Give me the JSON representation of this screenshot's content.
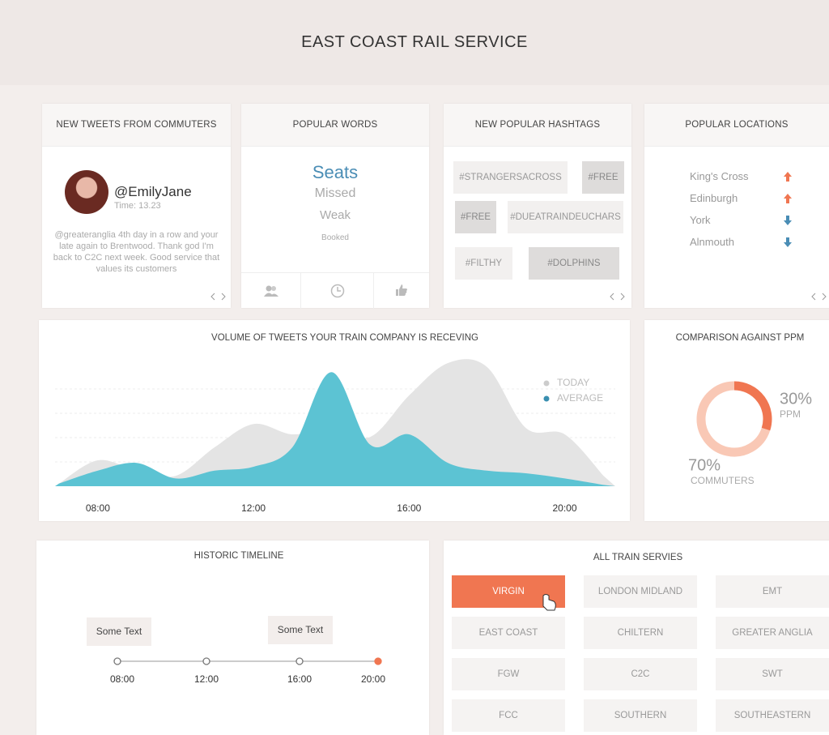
{
  "header": {
    "title": "EAST COAST RAIL SERVICE"
  },
  "tweets": {
    "title": "NEW TWEETS FROM COMMUTERS",
    "user": "@EmilyJane",
    "time": "Time: 13.23",
    "text": "@greateranglia 4th day in a row and your late again to Brentwood. Thank god I'm back to C2C next week. Good service that values its customers"
  },
  "words": {
    "title": "POPULAR WORDS",
    "items": [
      "Seats",
      "Missed",
      "Weak",
      "Booked"
    ]
  },
  "hashtags": {
    "title": "NEW POPULAR HASHTAGS",
    "items": [
      "#STRANGERSACROSS",
      "#FREE",
      "#FREE",
      "#DUEATRAINDEUCHARS",
      "#FILTHY",
      "#DOLPHINS"
    ]
  },
  "locations": {
    "title": "POPULAR LOCATIONS",
    "items": [
      {
        "name": "King's Cross",
        "trend": "up"
      },
      {
        "name": "Edinburgh",
        "trend": "up"
      },
      {
        "name": "York",
        "trend": "down"
      },
      {
        "name": "Alnmouth",
        "trend": "down"
      }
    ]
  },
  "chart_data": [
    {
      "type": "area",
      "title": "VOLUME OF TWEETS YOUR TRAIN COMPANY IS RECEVING",
      "x": [
        7,
        8,
        9,
        10,
        11,
        12,
        13,
        14,
        15,
        16,
        17,
        18,
        19,
        20,
        21
      ],
      "series": [
        {
          "name": "TODAY",
          "color": "#e4e4e4",
          "values": [
            2,
            20,
            12,
            8,
            30,
            48,
            40,
            45,
            38,
            70,
            95,
            92,
            45,
            40,
            8
          ]
        },
        {
          "name": "AVERAGE",
          "color": "#5cc3d3",
          "values": [
            2,
            12,
            18,
            6,
            12,
            15,
            30,
            88,
            32,
            40,
            18,
            12,
            10,
            6,
            1
          ]
        }
      ],
      "xlim": [
        6.9,
        21.3
      ],
      "ylim": [
        0,
        100
      ],
      "xticks": [
        {
          "value": 8,
          "label": "08:00"
        },
        {
          "value": 12,
          "label": "12:00"
        },
        {
          "value": 16,
          "label": "16:00"
        },
        {
          "value": 20,
          "label": "20:00"
        }
      ]
    },
    {
      "type": "donut",
      "title": "COMPARISON AGAINST PPM",
      "categories": [
        "PPM",
        "COMMUTERS"
      ],
      "values": [
        30,
        70
      ],
      "value_labels": [
        "30%",
        "70%"
      ],
      "colors": [
        "#f07651",
        "#f9c8b5"
      ]
    }
  ],
  "timeline": {
    "title": "HISTORIC TIMELINE",
    "notes": [
      "Some Text",
      "Some Text"
    ],
    "times": [
      "08:00",
      "12:00",
      "16:00",
      "20:00"
    ]
  },
  "services": {
    "title": "ALL TRAIN SERVIES",
    "items": [
      "VIRGIN",
      "LONDON MIDLAND",
      "EMT",
      "EAST COAST",
      "CHILTERN",
      "GREATER ANGLIA",
      "FGW",
      "C2C",
      "SWT",
      "FCC",
      "SOUTHERN",
      "SOUTHEASTERN"
    ],
    "selected": 0
  }
}
